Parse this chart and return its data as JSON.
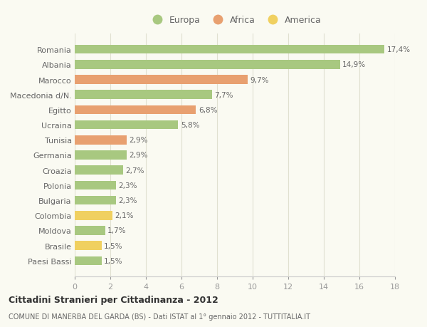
{
  "countries": [
    "Romania",
    "Albania",
    "Marocco",
    "Macedonia d/N.",
    "Egitto",
    "Ucraina",
    "Tunisia",
    "Germania",
    "Croazia",
    "Polonia",
    "Bulgaria",
    "Colombia",
    "Moldova",
    "Brasile",
    "Paesi Bassi"
  ],
  "values": [
    17.4,
    14.9,
    9.7,
    7.7,
    6.8,
    5.8,
    2.9,
    2.9,
    2.7,
    2.3,
    2.3,
    2.1,
    1.7,
    1.5,
    1.5
  ],
  "labels": [
    "17,4%",
    "14,9%",
    "9,7%",
    "7,7%",
    "6,8%",
    "5,8%",
    "2,9%",
    "2,9%",
    "2,7%",
    "2,3%",
    "2,3%",
    "2,1%",
    "1,7%",
    "1,5%",
    "1,5%"
  ],
  "continents": [
    "Europa",
    "Europa",
    "Africa",
    "Europa",
    "Africa",
    "Europa",
    "Africa",
    "Europa",
    "Europa",
    "Europa",
    "Europa",
    "America",
    "Europa",
    "America",
    "Europa"
  ],
  "colors": {
    "Europa": "#a8c880",
    "Africa": "#e8a070",
    "America": "#f0d060"
  },
  "legend_order": [
    "Europa",
    "Africa",
    "America"
  ],
  "legend_colors": [
    "#a8c880",
    "#e8a070",
    "#f0d060"
  ],
  "title": "Cittadini Stranieri per Cittadinanza - 2012",
  "subtitle": "COMUNE DI MANERBA DEL GARDA (BS) - Dati ISTAT al 1° gennaio 2012 - TUTTITALIA.IT",
  "xlim": [
    0,
    18
  ],
  "xticks": [
    0,
    2,
    4,
    6,
    8,
    10,
    12,
    14,
    16,
    18
  ],
  "bg_color": "#fafaf2",
  "grid_color": "#e0e0d0"
}
